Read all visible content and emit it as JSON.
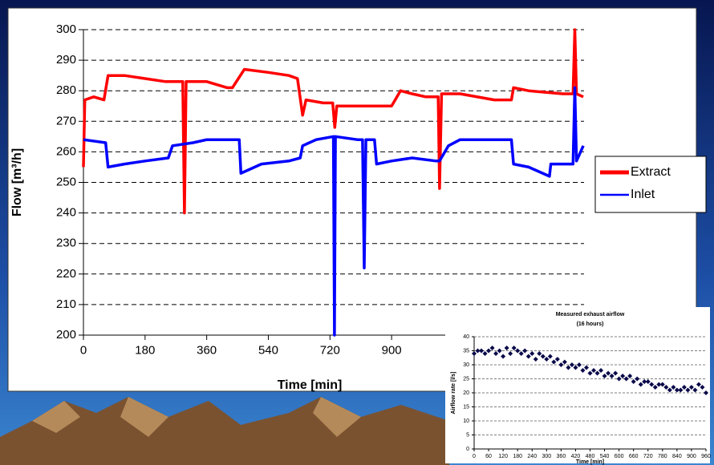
{
  "chart_data": [
    {
      "type": "line",
      "x_label": "Time [min]",
      "y_label": "Flow [m³/h]",
      "xlim": [
        0,
        1462
      ],
      "xticks": [
        0,
        180,
        360,
        540,
        720,
        900
      ],
      "ylim": [
        200,
        300
      ],
      "yticks": [
        200,
        210,
        220,
        230,
        240,
        250,
        260,
        270,
        280,
        290,
        300
      ],
      "grid": true,
      "legend": "right",
      "series": [
        {
          "name": "Extract",
          "color": "#ff0000",
          "x": [
            0,
            4,
            30,
            60,
            72,
            120,
            180,
            240,
            290,
            295,
            300,
            360,
            420,
            435,
            470,
            540,
            600,
            625,
            640,
            650,
            700,
            728,
            734,
            740,
            800,
            900,
            926,
            960,
            1000,
            1036,
            1040,
            1046,
            1100,
            1200,
            1250,
            1256,
            1300,
            1400,
            1430,
            1435,
            1440,
            1460
          ],
          "values": [
            255,
            277,
            278,
            277,
            285,
            285,
            284,
            283,
            283,
            240,
            283,
            283,
            281,
            281,
            287,
            286,
            285,
            284,
            272,
            277,
            276,
            276,
            268,
            275,
            275,
            275,
            280,
            279,
            278,
            278,
            248,
            279,
            279,
            277,
            277,
            281,
            280,
            279,
            279,
            300,
            279,
            278
          ]
        },
        {
          "name": "Inlet",
          "color": "#0000ff",
          "x": [
            0,
            65,
            72,
            120,
            180,
            248,
            260,
            320,
            360,
            455,
            460,
            520,
            600,
            633,
            640,
            680,
            730,
            733,
            736,
            800,
            815,
            820,
            825,
            850,
            856,
            900,
            960,
            1030,
            1040,
            1066,
            1100,
            1200,
            1250,
            1256,
            1300,
            1361,
            1365,
            1430,
            1435,
            1440,
            1460
          ],
          "values": [
            264,
            263,
            255,
            256,
            257,
            258,
            262,
            263,
            264,
            264,
            253,
            256,
            257,
            258,
            262,
            264,
            265,
            200,
            265,
            264,
            264,
            222,
            264,
            264,
            256,
            257,
            258,
            257,
            257,
            262,
            264,
            264,
            264,
            256,
            255,
            252,
            256,
            256,
            281,
            257,
            262
          ]
        }
      ]
    },
    {
      "type": "scatter",
      "title": "Measured exhaust airflow",
      "subtitle": "(16 hours)",
      "x_label": "Time [min]",
      "y_label": "Airflow rate [l/s]",
      "xlim": [
        0,
        960
      ],
      "xticks": [
        0,
        60,
        120,
        180,
        240,
        300,
        360,
        420,
        480,
        540,
        600,
        660,
        720,
        780,
        840,
        900,
        960
      ],
      "ylim": [
        0,
        40
      ],
      "yticks": [
        0,
        5,
        10,
        15,
        20,
        25,
        30,
        35,
        40
      ],
      "grid": true,
      "x": [
        0,
        15,
        30,
        45,
        60,
        75,
        90,
        105,
        120,
        135,
        150,
        165,
        180,
        195,
        210,
        225,
        240,
        255,
        270,
        285,
        300,
        315,
        330,
        345,
        360,
        375,
        390,
        405,
        420,
        435,
        450,
        465,
        480,
        495,
        510,
        525,
        540,
        555,
        570,
        585,
        600,
        615,
        630,
        645,
        660,
        675,
        690,
        705,
        720,
        735,
        750,
        765,
        780,
        795,
        810,
        825,
        840,
        855,
        870,
        885,
        900,
        915,
        930,
        945,
        960
      ],
      "series": [
        {
          "color": "#0a0a4a",
          "values": [
            34,
            35,
            35,
            34,
            35,
            36,
            34,
            35,
            33,
            36,
            34,
            36,
            35,
            34,
            35,
            33,
            34,
            32,
            34,
            33,
            32,
            33,
            31,
            32,
            30,
            31,
            29,
            30,
            29,
            30,
            28,
            29,
            27,
            28,
            27,
            28,
            26,
            27,
            26,
            27,
            25,
            26,
            25,
            26,
            24,
            25,
            23,
            24,
            24,
            23,
            22,
            23,
            23,
            22,
            21,
            22,
            21,
            21,
            22,
            21,
            22,
            21,
            23,
            22,
            20
          ]
        }
      ]
    }
  ]
}
